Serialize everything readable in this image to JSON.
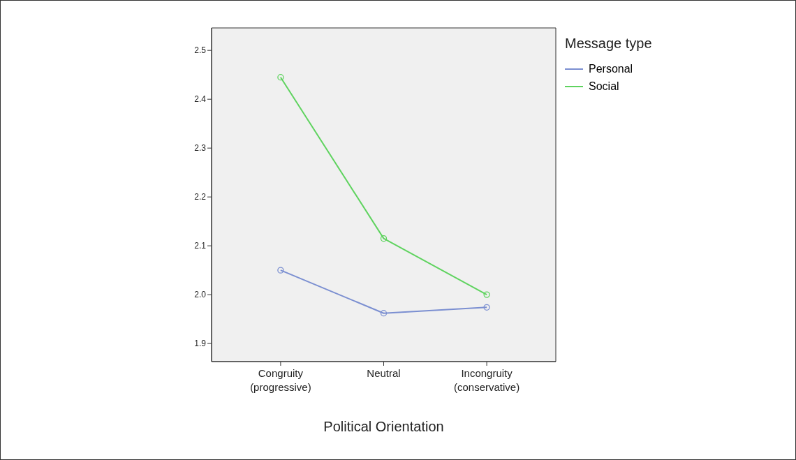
{
  "chart_data": {
    "type": "line",
    "xlabel": "Political Orientation",
    "legend_title": "Message type",
    "legend": "top right",
    "marker": "circle",
    "line_style": "solid",
    "grid": false,
    "categories": [
      "Congruity\n(progressive)",
      "Neutral",
      "Incongruity\n(conservative)"
    ],
    "series": [
      {
        "name": "Personal",
        "color": "#7b8fd1",
        "values": [
          2.05,
          1.962,
          1.974
        ]
      },
      {
        "name": "Social",
        "color": "#5fd35f",
        "values": [
          2.445,
          2.115,
          2.0
        ]
      }
    ],
    "ylim": [
      1.863,
      2.546
    ],
    "yticks": [
      1.9,
      {
        "value": 2,
        "label": "2.0"
      },
      2.1,
      2.2,
      2.3,
      2.4,
      2.5
    ]
  }
}
